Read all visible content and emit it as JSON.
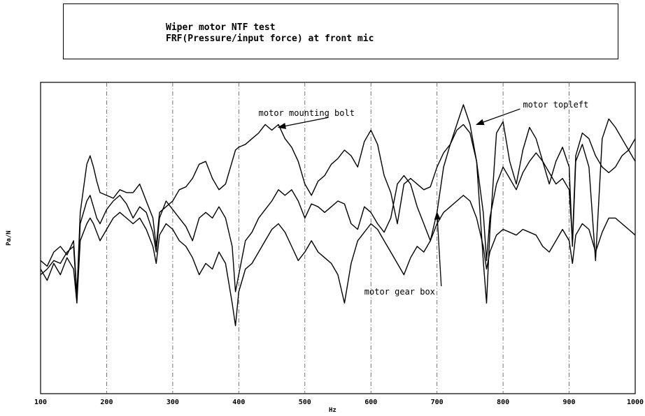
{
  "chart_data": {
    "type": "line",
    "title": [
      "Wiper motor NTF test",
      "FRF(Pressure/input force) at front mic"
    ],
    "xlabel": "Hz",
    "ylabel": "Pa/N",
    "xlim": [
      100,
      1000
    ],
    "ylim": [
      0,
      1
    ],
    "x_ticks": [
      100,
      200,
      300,
      400,
      500,
      600,
      700,
      800,
      900,
      1000
    ],
    "grid": "vertical-dashed",
    "series": [
      {
        "name": "motor mounting bolt",
        "x": [
          100,
          110,
          120,
          130,
          140,
          150,
          155,
          160,
          170,
          175,
          180,
          185,
          190,
          200,
          210,
          220,
          230,
          240,
          250,
          260,
          270,
          275,
          280,
          290,
          300,
          310,
          320,
          330,
          340,
          350,
          360,
          370,
          380,
          390,
          395,
          400,
          410,
          420,
          430,
          440,
          450,
          460,
          470,
          480,
          490,
          500,
          510,
          520,
          530,
          540,
          550,
          560,
          570,
          580,
          590,
          600,
          610,
          620,
          630,
          640,
          650,
          660,
          670,
          680,
          690,
          700,
          710,
          720,
          730,
          740,
          750,
          760,
          770,
          775,
          780,
          790,
          800,
          810,
          820,
          830,
          840,
          850,
          860,
          870,
          880,
          890,
          900,
          905,
          910,
          920,
          930,
          940,
          950,
          960,
          970,
          980,
          990,
          1000
        ],
        "y": [
          0.45,
          0.43,
          0.48,
          0.5,
          0.47,
          0.52,
          0.33,
          0.62,
          0.79,
          0.82,
          0.78,
          0.73,
          0.69,
          0.68,
          0.67,
          0.7,
          0.69,
          0.69,
          0.72,
          0.66,
          0.6,
          0.5,
          0.62,
          0.64,
          0.66,
          0.7,
          0.71,
          0.74,
          0.79,
          0.8,
          0.74,
          0.7,
          0.72,
          0.8,
          0.84,
          0.85,
          0.86,
          0.88,
          0.9,
          0.93,
          0.91,
          0.93,
          0.88,
          0.85,
          0.8,
          0.72,
          0.68,
          0.73,
          0.75,
          0.79,
          0.81,
          0.84,
          0.82,
          0.78,
          0.87,
          0.91,
          0.86,
          0.75,
          0.69,
          0.58,
          0.72,
          0.74,
          0.72,
          0.7,
          0.71,
          0.78,
          0.83,
          0.86,
          0.93,
          1.0,
          0.93,
          0.8,
          0.45,
          0.3,
          0.55,
          0.9,
          0.94,
          0.8,
          0.72,
          0.84,
          0.92,
          0.88,
          0.8,
          0.72,
          0.8,
          0.85,
          0.78,
          0.5,
          0.8,
          0.86,
          0.78,
          0.45,
          0.88,
          0.95,
          0.92,
          0.88,
          0.84,
          0.8
        ]
      },
      {
        "name": "motor topleft",
        "x": [
          100,
          110,
          120,
          130,
          140,
          150,
          155,
          160,
          170,
          175,
          180,
          185,
          190,
          200,
          210,
          220,
          230,
          240,
          250,
          260,
          270,
          275,
          280,
          290,
          300,
          310,
          320,
          330,
          340,
          350,
          360,
          370,
          380,
          390,
          395,
          400,
          410,
          420,
          430,
          440,
          450,
          460,
          470,
          480,
          490,
          500,
          510,
          520,
          530,
          540,
          550,
          560,
          570,
          580,
          590,
          600,
          610,
          620,
          630,
          640,
          650,
          660,
          670,
          680,
          690,
          700,
          710,
          720,
          730,
          740,
          750,
          760,
          770,
          775,
          780,
          790,
          800,
          810,
          820,
          830,
          840,
          850,
          860,
          870,
          880,
          890,
          900,
          905,
          910,
          920,
          930,
          940,
          950,
          960,
          970,
          980,
          990,
          1000
        ],
        "y": [
          0.4,
          0.42,
          0.45,
          0.44,
          0.48,
          0.5,
          0.32,
          0.58,
          0.66,
          0.68,
          0.64,
          0.6,
          0.58,
          0.63,
          0.66,
          0.68,
          0.65,
          0.6,
          0.64,
          0.62,
          0.55,
          0.48,
          0.6,
          0.66,
          0.63,
          0.6,
          0.57,
          0.52,
          0.6,
          0.62,
          0.6,
          0.64,
          0.6,
          0.5,
          0.34,
          0.4,
          0.52,
          0.55,
          0.6,
          0.63,
          0.66,
          0.7,
          0.68,
          0.7,
          0.66,
          0.6,
          0.65,
          0.64,
          0.62,
          0.64,
          0.66,
          0.65,
          0.58,
          0.56,
          0.64,
          0.62,
          0.58,
          0.55,
          0.6,
          0.72,
          0.75,
          0.72,
          0.64,
          0.58,
          0.52,
          0.62,
          0.78,
          0.86,
          0.91,
          0.93,
          0.9,
          0.8,
          0.62,
          0.45,
          0.6,
          0.72,
          0.78,
          0.74,
          0.7,
          0.76,
          0.8,
          0.83,
          0.8,
          0.76,
          0.72,
          0.74,
          0.7,
          0.52,
          0.82,
          0.9,
          0.88,
          0.82,
          0.78,
          0.76,
          0.78,
          0.82,
          0.84,
          0.88
        ]
      },
      {
        "name": "motor gear box",
        "x": [
          100,
          110,
          120,
          130,
          140,
          150,
          155,
          160,
          170,
          175,
          180,
          185,
          190,
          200,
          210,
          220,
          230,
          240,
          250,
          260,
          270,
          275,
          280,
          290,
          300,
          310,
          320,
          330,
          340,
          350,
          360,
          370,
          380,
          390,
          395,
          400,
          410,
          420,
          430,
          440,
          450,
          460,
          470,
          480,
          490,
          500,
          510,
          520,
          530,
          540,
          550,
          560,
          570,
          580,
          590,
          600,
          610,
          620,
          630,
          640,
          650,
          660,
          670,
          680,
          690,
          700,
          710,
          720,
          730,
          740,
          750,
          760,
          770,
          775,
          780,
          790,
          800,
          810,
          820,
          830,
          840,
          850,
          860,
          870,
          880,
          890,
          900,
          905,
          910,
          920,
          930,
          940,
          950,
          960,
          970,
          980,
          990,
          1000
        ],
        "y": [
          0.42,
          0.38,
          0.44,
          0.4,
          0.46,
          0.42,
          0.3,
          0.52,
          0.58,
          0.6,
          0.58,
          0.55,
          0.52,
          0.56,
          0.6,
          0.62,
          0.6,
          0.58,
          0.6,
          0.56,
          0.5,
          0.44,
          0.54,
          0.58,
          0.56,
          0.52,
          0.5,
          0.46,
          0.4,
          0.44,
          0.42,
          0.48,
          0.44,
          0.3,
          0.22,
          0.34,
          0.42,
          0.44,
          0.48,
          0.52,
          0.56,
          0.58,
          0.55,
          0.5,
          0.45,
          0.48,
          0.52,
          0.48,
          0.46,
          0.44,
          0.4,
          0.3,
          0.44,
          0.52,
          0.55,
          0.58,
          0.56,
          0.52,
          0.48,
          0.44,
          0.4,
          0.46,
          0.5,
          0.48,
          0.52,
          0.58,
          0.62,
          0.64,
          0.66,
          0.68,
          0.66,
          0.6,
          0.5,
          0.42,
          0.48,
          0.54,
          0.56,
          0.55,
          0.54,
          0.56,
          0.55,
          0.54,
          0.5,
          0.48,
          0.52,
          0.56,
          0.52,
          0.44,
          0.54,
          0.58,
          0.56,
          0.48,
          0.55,
          0.6,
          0.6,
          0.58,
          0.56,
          0.54
        ]
      }
    ],
    "annotations": [
      {
        "text": "motor mounting bolt",
        "x": 430,
        "y": 0.96,
        "arrow_to": [
          460,
          0.92
        ]
      },
      {
        "text": "motor topleft",
        "x": 830,
        "y": 0.99,
        "arrow_to": [
          760,
          0.93
        ]
      },
      {
        "text": "motor gear box",
        "x": 590,
        "y": 0.33,
        "arrow_to": [
          700,
          0.62
        ]
      }
    ]
  }
}
